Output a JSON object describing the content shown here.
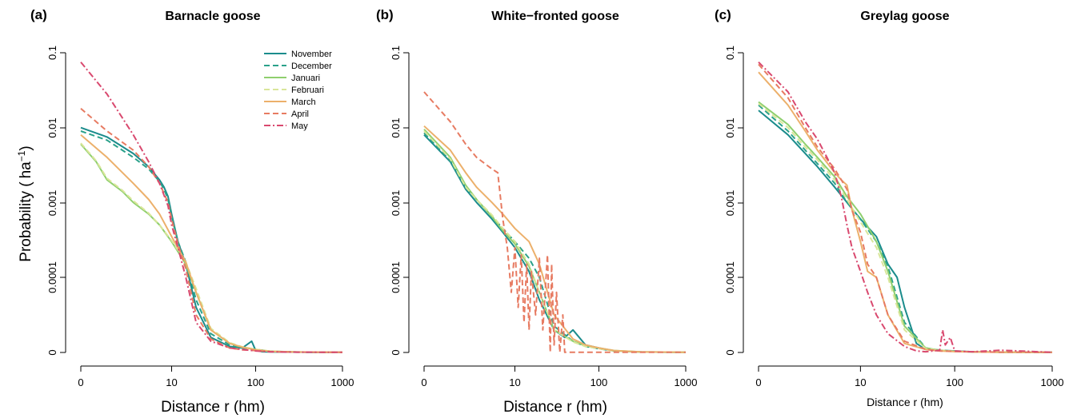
{
  "figure": {
    "ylabel_main": "Probability (",
    "ylabel_unit": "ha",
    "ylabel_exp": "−1",
    "ylabel_close": ")"
  },
  "legend": [
    {
      "name": "November",
      "color": "#1b8c8c",
      "dash": "solid"
    },
    {
      "name": "December",
      "color": "#2aa18a",
      "dash": "dashed"
    },
    {
      "name": "Januari",
      "color": "#8fcf6e",
      "dash": "solid"
    },
    {
      "name": "Februari",
      "color": "#d9e69a",
      "dash": "dashed"
    },
    {
      "name": "March",
      "color": "#ecb06b",
      "dash": "solid"
    },
    {
      "name": "April",
      "color": "#e77b62",
      "dash": "dashed"
    },
    {
      "name": "May",
      "color": "#d9496f",
      "dash": "dotdash"
    }
  ],
  "chart_data": [
    {
      "type": "line",
      "panel": "(a)",
      "title": "Barnacle goose",
      "xlabel": "Distance r (hm)",
      "xscale": "log",
      "xticks": [
        "0",
        "10",
        "100",
        "1000"
      ],
      "yticks": [
        "0",
        "0.0001",
        "0.001",
        "0.01",
        "0.1"
      ],
      "series": [
        {
          "name": "November",
          "x": [
            0,
            1,
            3,
            5,
            7,
            8,
            9,
            10,
            12,
            15,
            20,
            30,
            50,
            70,
            90,
            100,
            120,
            200,
            400,
            1000
          ],
          "y": [
            0.01,
            0.0075,
            0.0045,
            0.003,
            0.002,
            0.0016,
            0.0012,
            0.0007,
            0.0003,
            0.00015,
            6e-05,
            2e-05,
            8e-06,
            6e-06,
            1.5e-05,
            3e-06,
            1e-06,
            5e-07,
            3e-07,
            2e-07
          ]
        },
        {
          "name": "December",
          "x": [
            0,
            1,
            3,
            5,
            7,
            8,
            9,
            10,
            12,
            15,
            20,
            30,
            50,
            70,
            100,
            150,
            300,
            1000
          ],
          "y": [
            0.009,
            0.0068,
            0.004,
            0.0028,
            0.0019,
            0.0015,
            0.0011,
            0.00065,
            0.0003,
            0.00016,
            7e-05,
            2.5e-05,
            1e-05,
            6e-06,
            4e-06,
            1.5e-06,
            5e-07,
            2e-07
          ]
        },
        {
          "name": "Januari",
          "x": [
            0,
            0.5,
            1,
            2,
            3,
            5,
            7,
            10,
            15,
            20,
            30,
            50,
            70,
            100,
            150,
            300,
            1000
          ],
          "y": [
            0.006,
            0.0035,
            0.002,
            0.0014,
            0.001,
            0.0007,
            0.0005,
            0.0003,
            0.00015,
            8e-05,
            3e-05,
            1.2e-05,
            7e-06,
            4e-06,
            1.5e-06,
            6e-07,
            2e-07
          ]
        },
        {
          "name": "Februari",
          "x": [
            0,
            0.5,
            1,
            2,
            3,
            5,
            7,
            10,
            15,
            20,
            30,
            50,
            70,
            100,
            150,
            300,
            1000
          ],
          "y": [
            0.0062,
            0.0036,
            0.0021,
            0.00145,
            0.00105,
            0.00072,
            0.0005,
            0.00031,
            0.00016,
            8.5e-05,
            3.2e-05,
            1.3e-05,
            7.5e-06,
            4.2e-06,
            1.6e-06,
            6e-07,
            2e-07
          ]
        },
        {
          "name": "March",
          "x": [
            0,
            1,
            3,
            5,
            7,
            10,
            15,
            20,
            30,
            50,
            70,
            100,
            150,
            300,
            1000
          ],
          "y": [
            0.008,
            0.004,
            0.0018,
            0.0011,
            0.0007,
            0.00035,
            0.00016,
            8e-05,
            3e-05,
            1.2e-05,
            7e-06,
            3.5e-06,
            1.5e-06,
            5e-07,
            2e-07
          ]
        },
        {
          "name": "April",
          "x": [
            0,
            1,
            3,
            5,
            7,
            9,
            10,
            12,
            15,
            20,
            30,
            50,
            70,
            100,
            150,
            300,
            1000
          ],
          "y": [
            0.018,
            0.009,
            0.005,
            0.003,
            0.0018,
            0.001,
            0.0006,
            0.00028,
            0.00013,
            5e-05,
            1.8e-05,
            6e-06,
            3.5e-06,
            2.5e-06,
            1e-06,
            4e-07,
            2e-07
          ]
        },
        {
          "name": "May",
          "x": [
            0,
            1,
            3,
            5,
            7,
            9,
            10,
            12,
            15,
            20,
            30,
            50,
            70,
            100,
            150,
            300,
            1000
          ],
          "y": [
            0.075,
            0.028,
            0.008,
            0.0035,
            0.0018,
            0.0009,
            0.0005,
            0.00025,
            0.0001,
            4e-05,
            1.5e-05,
            6e-06,
            4e-06,
            2e-06,
            8e-07,
            4e-07,
            2e-07
          ]
        }
      ]
    },
    {
      "type": "line",
      "panel": "(b)",
      "title": "White−fronted goose",
      "xlabel": "Distance r (hm)",
      "xscale": "log",
      "xticks": [
        "0",
        "10",
        "100",
        "1000"
      ],
      "yticks": [
        "0",
        "0.0001",
        "0.001",
        "0.01",
        "0.1"
      ],
      "series": [
        {
          "name": "November",
          "x": [
            0,
            1,
            2,
            3,
            5,
            7,
            10,
            15,
            20,
            30,
            40,
            50,
            70,
            100,
            150,
            300,
            1000
          ],
          "y": [
            0.008,
            0.0035,
            0.0015,
            0.001,
            0.0006,
            0.0004,
            0.00025,
            0.00012,
            7e-05,
            3e-05,
            2e-05,
            3e-05,
            1e-05,
            6e-06,
            2e-06,
            6e-07,
            2e-07
          ]
        },
        {
          "name": "December",
          "x": [
            0,
            1,
            2,
            3,
            5,
            7,
            10,
            15,
            20,
            30,
            50,
            70,
            100,
            150,
            300,
            1000
          ],
          "y": [
            0.0085,
            0.0036,
            0.0016,
            0.0011,
            0.00065,
            0.00045,
            0.0003,
            0.00018,
            0.0001,
            3.5e-05,
            1.5e-05,
            8e-06,
            5e-06,
            2e-06,
            6e-07,
            2e-07
          ]
        },
        {
          "name": "Januari",
          "x": [
            0,
            1,
            2,
            3,
            5,
            7,
            10,
            15,
            20,
            30,
            50,
            70,
            100,
            150,
            300,
            1000
          ],
          "y": [
            0.0095,
            0.004,
            0.0017,
            0.0011,
            0.00065,
            0.00042,
            0.00028,
            0.00014,
            8e-05,
            3e-05,
            1.5e-05,
            9e-06,
            6e-06,
            2.5e-06,
            7e-07,
            2e-07
          ]
        },
        {
          "name": "Februari",
          "x": [
            0,
            1,
            2,
            3,
            5,
            7,
            10,
            15,
            20,
            30,
            50,
            70,
            100,
            150,
            300,
            1000
          ],
          "y": [
            0.009,
            0.0038,
            0.0016,
            0.0011,
            0.00068,
            0.00045,
            0.0003,
            0.00015,
            8e-05,
            3e-05,
            1.4e-05,
            8e-06,
            5e-06,
            2e-06,
            6e-07,
            2e-07
          ]
        },
        {
          "name": "March",
          "x": [
            0,
            1,
            2,
            3,
            5,
            7,
            10,
            15,
            20,
            30,
            50,
            70,
            100,
            150,
            300,
            1000
          ],
          "y": [
            0.0105,
            0.005,
            0.0025,
            0.0016,
            0.001,
            0.0007,
            0.00045,
            0.0003,
            0.00015,
            5e-05,
            1.8e-05,
            1e-05,
            6e-06,
            2.5e-06,
            7e-07,
            2e-07
          ]
        },
        {
          "name": "April",
          "x": [
            0,
            1,
            2,
            3,
            5,
            6,
            7,
            8,
            9,
            10,
            11,
            12,
            13,
            14,
            15,
            16,
            18,
            20,
            22,
            25,
            27,
            28,
            30,
            32,
            35,
            38,
            40,
            45,
            50,
            1000
          ],
          "y": [
            0.03,
            0.012,
            0.006,
            0.004,
            0.0028,
            0.0025,
            0.0006,
            0.00025,
            8e-05,
            0.00025,
            6e-05,
            0.0002,
            4e-05,
            0.00015,
            3e-05,
            0.00012,
            5e-05,
            0.00018,
            3e-05,
            0.0002,
            2e-07,
            0.00015,
            1e-05,
            8e-05,
            2e-07,
            5e-05,
            2e-07,
            2e-07,
            2e-07,
            2e-07
          ]
        }
      ]
    },
    {
      "type": "line",
      "panel": "(c)",
      "title": "Greylag goose",
      "xlabel": "Distance r (hm)",
      "xscale": "log",
      "xticks": [
        "0",
        "10",
        "100",
        "1000"
      ],
      "yticks": [
        "0",
        "0.0001",
        "0.001",
        "0.01",
        "0.1"
      ],
      "series": [
        {
          "name": "November",
          "x": [
            0,
            1,
            2,
            3,
            5,
            7,
            10,
            15,
            20,
            25,
            30,
            40,
            50,
            70,
            100,
            150,
            300,
            1000
          ],
          "y": [
            0.017,
            0.008,
            0.0045,
            0.003,
            0.0016,
            0.001,
            0.0006,
            0.00035,
            0.00015,
            0.0001,
            6e-05,
            1.2e-05,
            4e-06,
            3e-06,
            2e-06,
            1e-06,
            4e-07,
            2e-07
          ]
        },
        {
          "name": "December",
          "x": [
            0,
            1,
            2,
            3,
            5,
            7,
            10,
            15,
            20,
            30,
            50,
            70,
            100,
            150,
            300,
            1000
          ],
          "y": [
            0.02,
            0.009,
            0.005,
            0.0033,
            0.0018,
            0.001,
            0.0006,
            0.0003,
            0.00014,
            4e-05,
            6e-06,
            3e-06,
            1.5e-06,
            8e-07,
            4e-07,
            2e-07
          ]
        },
        {
          "name": "Januari",
          "x": [
            0,
            1,
            2,
            3,
            5,
            7,
            10,
            15,
            20,
            30,
            50,
            70,
            100,
            150,
            300,
            1000
          ],
          "y": [
            0.022,
            0.011,
            0.006,
            0.004,
            0.0022,
            0.0012,
            0.0007,
            0.0003,
            0.00012,
            3.5e-05,
            6e-06,
            3e-06,
            1.5e-06,
            8e-07,
            4e-07,
            2e-07
          ]
        },
        {
          "name": "Februari",
          "x": [
            0,
            1,
            2,
            3,
            5,
            7,
            10,
            15,
            20,
            30,
            50,
            70,
            100,
            150,
            300,
            1000
          ],
          "y": [
            0.021,
            0.01,
            0.0055,
            0.0037,
            0.002,
            0.0011,
            0.00055,
            0.00025,
            0.0001,
            3e-05,
            5e-06,
            3e-06,
            1.5e-06,
            8e-07,
            4e-07,
            2e-07
          ]
        },
        {
          "name": "March",
          "x": [
            0,
            1,
            2,
            3,
            5,
            6,
            7,
            8,
            10,
            12,
            15,
            20,
            30,
            50,
            70,
            100,
            150,
            300,
            1000
          ],
          "y": [
            0.055,
            0.02,
            0.009,
            0.005,
            0.0025,
            0.002,
            0.0017,
            0.0008,
            0.0003,
            0.00012,
            0.0001,
            5e-05,
            1.2e-05,
            4e-06,
            2e-06,
            1.2e-06,
            7e-07,
            3e-07,
            2e-07
          ]
        },
        {
          "name": "April",
          "x": [
            0,
            1,
            2,
            3,
            5,
            7,
            8,
            10,
            12,
            15,
            20,
            30,
            50,
            70,
            100,
            150,
            300,
            1000
          ],
          "y": [
            0.07,
            0.025,
            0.01,
            0.0055,
            0.0028,
            0.0015,
            0.0008,
            0.0004,
            0.00015,
            0.0001,
            5e-05,
            1.5e-05,
            4e-06,
            2e-06,
            1.5e-06,
            8e-07,
            4e-07,
            2e-07
          ]
        },
        {
          "name": "May",
          "x": [
            0,
            1,
            2,
            3,
            4,
            5,
            6,
            7,
            8,
            10,
            12,
            15,
            20,
            30,
            40,
            50,
            70,
            75,
            80,
            90,
            100,
            150,
            300,
            1000
          ],
          "y": [
            0.075,
            0.03,
            0.012,
            0.007,
            0.004,
            0.0025,
            0.0012,
            0.0005,
            0.00025,
            0.00012,
            8e-05,
            5e-05,
            2.5e-05,
            8e-06,
            2e-06,
            1e-06,
            3e-06,
            3e-05,
            1e-05,
            2e-05,
            2e-06,
            1e-06,
            3e-06,
            2e-07
          ]
        }
      ]
    }
  ]
}
